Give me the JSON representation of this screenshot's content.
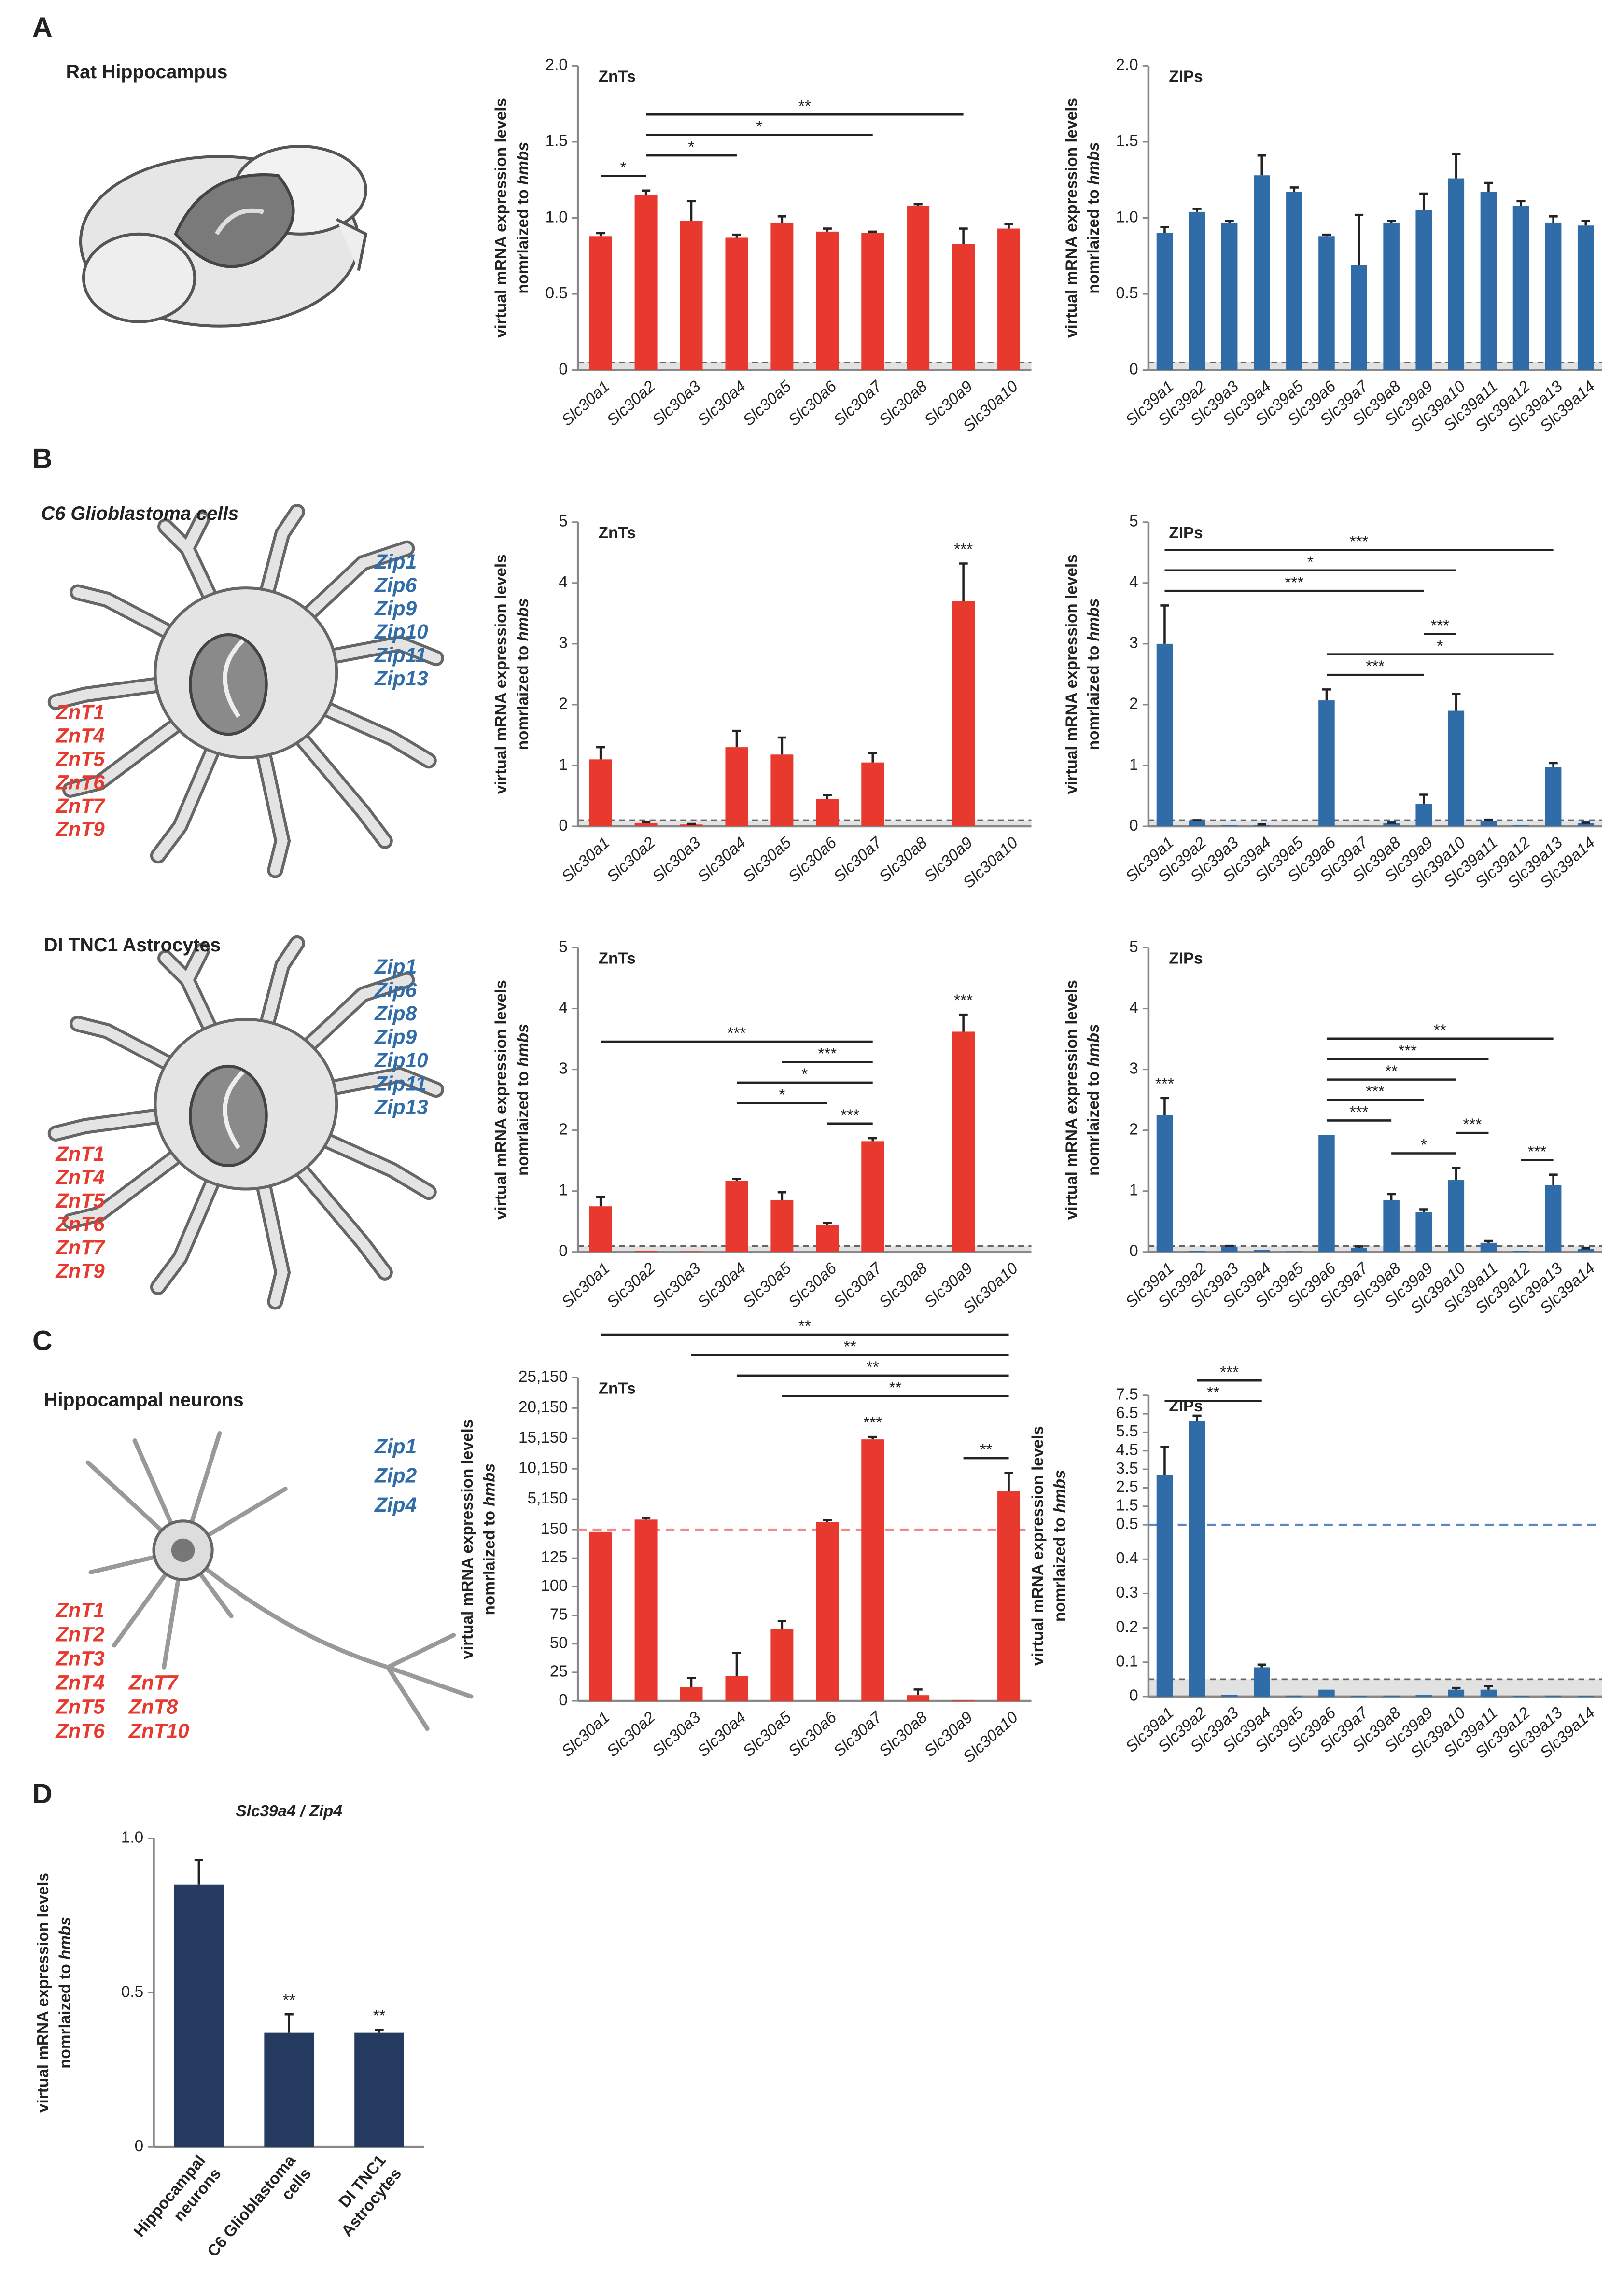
{
  "panels": {
    "A": {
      "label": "A",
      "caption": "Rat Hippocampus"
    },
    "B": {
      "label": "B",
      "caption": "C6 Glioblastoma cells",
      "blue": [
        "Zip1",
        "Zip6",
        "Zip9",
        "Zip10",
        "Zip11",
        "Zip13"
      ],
      "red": [
        "ZnT1",
        "ZnT4",
        "ZnT5",
        "ZnT6",
        "ZnT7",
        "ZnT9"
      ],
      "caption2": "DI TNC1 Astrocytes",
      "blue2": [
        "Zip1",
        "Zip6",
        "Zip8",
        "Zip9",
        "Zip10",
        "Zip11",
        "Zip13"
      ],
      "red2": [
        "ZnT1",
        "ZnT4",
        "ZnT5",
        "ZnT6",
        "ZnT7",
        "ZnT9"
      ]
    },
    "C": {
      "label": "C",
      "caption": "Hippocampal neurons",
      "blue": [
        "Zip1",
        "Zip2",
        "Zip4"
      ],
      "red": [
        "ZnT1",
        "ZnT2",
        "ZnT3",
        "ZnT4",
        "ZnT5",
        "ZnT6",
        "ZnT7",
        "ZnT8",
        "ZnT10"
      ]
    },
    "D": {
      "label": "D"
    }
  },
  "chart_data": [
    {
      "type": "bar",
      "title": "ZnTs",
      "ylabel": {
        "line1": "virtual mRNA expression levels",
        "line2": "nomrlaized to",
        "italic": "hmbs"
      },
      "categories": [
        "Slc30a1",
        "Slc30a2",
        "Slc30a3",
        "Slc30a4",
        "Slc30a5",
        "Slc30a6",
        "Slc30a7",
        "Slc30a8",
        "Slc30a9",
        "Slc30a10"
      ],
      "values": [
        0.88,
        1.15,
        0.98,
        0.87,
        0.97,
        0.91,
        0.9,
        1.08,
        0.83,
        0.93
      ],
      "errors": [
        0.02,
        0.03,
        0.13,
        0.02,
        0.04,
        0.02,
        0.01,
        0.01,
        0.1,
        0.03
      ],
      "color": "#e8392e",
      "ylim": [
        0,
        2
      ],
      "yticks": [
        0,
        0.5,
        {
          "value": 1,
          "label": "1.0"
        },
        1.5,
        {
          "value": 2,
          "label": "2.0"
        }
      ],
      "threshold": 0.05,
      "significance": [
        {
          "between": [
            "Slc30a1",
            "Slc30a2"
          ],
          "label": "*"
        },
        {
          "between": [
            "Slc30a2",
            "Slc30a4"
          ],
          "label": "*"
        },
        {
          "between": [
            "Slc30a2",
            "Slc30a7"
          ],
          "label": "*"
        },
        {
          "between": [
            "Slc30a2",
            "Slc30a9"
          ],
          "label": "**"
        }
      ]
    },
    {
      "type": "bar",
      "title": "ZIPs",
      "ylabel": {
        "line1": "virtual mRNA expression levels",
        "line2": "nomrlaized to",
        "italic": "hmbs"
      },
      "categories": [
        "Slc39a1",
        "Slc39a2",
        "Slc39a3",
        "Slc39a4",
        "Slc39a5",
        "Slc39a6",
        "Slc39a7",
        "Slc39a8",
        "Slc39a9",
        "Slc39a10",
        "Slc39a11",
        "Slc39a12",
        "Slc39a13",
        "Slc39a14"
      ],
      "values": [
        0.9,
        1.04,
        0.97,
        1.28,
        1.17,
        0.88,
        0.69,
        0.97,
        1.05,
        1.26,
        1.17,
        1.08,
        0.97,
        0.95
      ],
      "errors": [
        0.04,
        0.02,
        0.01,
        0.13,
        0.03,
        0.01,
        0.33,
        0.01,
        0.11,
        0.16,
        0.06,
        0.03,
        0.04,
        0.03
      ],
      "color": "#2f6ca8",
      "ylim": [
        0,
        2
      ],
      "yticks": [
        0,
        0.5,
        {
          "value": 1,
          "label": "1.0"
        },
        1.5,
        {
          "value": 2,
          "label": "2.0"
        }
      ],
      "threshold": 0.05
    },
    {
      "type": "bar",
      "title": "ZnTs",
      "ylabel": {
        "line1": "virtual mRNA expression levels",
        "line2": "nomrlaized to",
        "italic": "hmbs"
      },
      "categories": [
        "Slc30a1",
        "Slc30a2",
        "Slc30a3",
        "Slc30a4",
        "Slc30a5",
        "Slc30a6",
        "Slc30a7",
        "Slc30a8",
        "Slc30a9",
        "Slc30a10"
      ],
      "values": [
        1.1,
        0.05,
        0.03,
        1.3,
        1.18,
        0.45,
        1.05,
        0,
        3.7,
        0
      ],
      "errors": [
        0.2,
        0.02,
        0.01,
        0.27,
        0.28,
        0.06,
        0.15,
        0,
        0.62,
        0
      ],
      "color": "#e8392e",
      "ylim": [
        0,
        5
      ],
      "yticks": [
        0,
        1,
        2,
        3,
        4,
        5
      ],
      "threshold": 0.1,
      "annotations": [
        null,
        null,
        null,
        null,
        null,
        null,
        null,
        null,
        "***",
        null
      ]
    },
    {
      "type": "bar",
      "title": "ZIPs",
      "ylabel": {
        "line1": "virtual mRNA expression levels",
        "line2": "nomrlaized to",
        "italic": "hmbs"
      },
      "categories": [
        "Slc39a1",
        "Slc39a2",
        "Slc39a3",
        "Slc39a4",
        "Slc39a5",
        "Slc39a6",
        "Slc39a7",
        "Slc39a8",
        "Slc39a9",
        "Slc39a10",
        "Slc39a11",
        "Slc39a12",
        "Slc39a13",
        "Slc39a14"
      ],
      "values": [
        3.0,
        0.08,
        0.02,
        0.02,
        0.01,
        2.07,
        0.01,
        0.05,
        0.37,
        1.9,
        0.08,
        0.02,
        0.97,
        0.05
      ],
      "errors": [
        0.63,
        0.02,
        0,
        0.01,
        0,
        0.18,
        0,
        0.01,
        0.15,
        0.28,
        0.03,
        0,
        0.07,
        0.01
      ],
      "color": "#2f6ca8",
      "ylim": [
        0,
        5
      ],
      "yticks": [
        0,
        1,
        2,
        3,
        4,
        5
      ],
      "threshold": 0.1,
      "significance": [
        {
          "between": [
            "Slc39a6",
            "Slc39a9"
          ],
          "label": "***"
        },
        {
          "between": [
            "Slc39a6",
            "Slc39a13"
          ],
          "label": "*"
        },
        {
          "between": [
            "Slc39a9",
            "Slc39a10"
          ],
          "label": "***"
        },
        {
          "between": [
            "Slc39a1",
            "Slc39a9"
          ],
          "label": "***"
        },
        {
          "between": [
            "Slc39a1",
            "Slc39a10"
          ],
          "label": "*"
        },
        {
          "between": [
            "Slc39a1",
            "Slc39a13"
          ],
          "label": "***"
        }
      ]
    },
    {
      "type": "bar",
      "title": "ZnTs",
      "ylabel": {
        "line1": "virtual mRNA expression levels",
        "line2": "nomrlaized to",
        "italic": "hmbs"
      },
      "categories": [
        "Slc30a1",
        "Slc30a2",
        "Slc30a3",
        "Slc30a4",
        "Slc30a5",
        "Slc30a6",
        "Slc30a7",
        "Slc30a8",
        "Slc30a9",
        "Slc30a10"
      ],
      "values": [
        0.75,
        0.02,
        0.01,
        1.17,
        0.85,
        0.45,
        1.82,
        0,
        3.62,
        0
      ],
      "errors": [
        0.15,
        0,
        0,
        0.03,
        0.13,
        0.03,
        0.05,
        0,
        0.28,
        0
      ],
      "color": "#e8392e",
      "ylim": [
        0,
        5
      ],
      "yticks": [
        0,
        1,
        2,
        3,
        4,
        5
      ],
      "threshold": 0.1,
      "annotations": [
        null,
        null,
        null,
        null,
        null,
        null,
        null,
        null,
        "***",
        null
      ],
      "significance": [
        {
          "between": [
            "Slc30a6",
            "Slc30a7"
          ],
          "label": "***"
        },
        {
          "between": [
            "Slc30a4",
            "Slc30a6"
          ],
          "label": "*"
        },
        {
          "between": [
            "Slc30a4",
            "Slc30a7"
          ],
          "label": "*"
        },
        {
          "between": [
            "Slc30a5",
            "Slc30a7"
          ],
          "label": "***"
        },
        {
          "between": [
            "Slc30a1",
            "Slc30a7"
          ],
          "label": "***"
        }
      ]
    },
    {
      "type": "bar",
      "title": "ZIPs",
      "ylabel": {
        "line1": "virtual mRNA expression levels",
        "line2": "nomrlaized to",
        "italic": "hmbs"
      },
      "categories": [
        "Slc39a1",
        "Slc39a2",
        "Slc39a3",
        "Slc39a4",
        "Slc39a5",
        "Slc39a6",
        "Slc39a7",
        "Slc39a8",
        "Slc39a9",
        "Slc39a10",
        "Slc39a11",
        "Slc39a12",
        "Slc39a13",
        "Slc39a14"
      ],
      "values": [
        2.25,
        0.02,
        0.08,
        0.03,
        0.01,
        1.92,
        0.07,
        0.85,
        0.65,
        1.18,
        0.15,
        0.02,
        1.1,
        0.05
      ],
      "errors": [
        0.28,
        0,
        0.02,
        0,
        0,
        0,
        0.02,
        0.1,
        0.05,
        0.2,
        0.03,
        0,
        0.17,
        0.01
      ],
      "color": "#2f6ca8",
      "ylim": [
        0,
        5
      ],
      "yticks": [
        0,
        1,
        2,
        3,
        4,
        5
      ],
      "threshold": 0.1,
      "annotations": [
        "***",
        null,
        null,
        null,
        null,
        null,
        null,
        null,
        null,
        null,
        null,
        null,
        null,
        null
      ],
      "significance": [
        {
          "between": [
            "Slc39a8",
            "Slc39a10"
          ],
          "label": "*"
        },
        {
          "between": [
            "Slc39a10",
            "Slc39a11"
          ],
          "label": "***"
        },
        {
          "between": [
            "Slc39a12",
            "Slc39a13"
          ],
          "label": "***"
        },
        {
          "between": [
            "Slc39a6",
            "Slc39a8"
          ],
          "label": "***"
        },
        {
          "between": [
            "Slc39a6",
            "Slc39a9"
          ],
          "label": "***"
        },
        {
          "between": [
            "Slc39a6",
            "Slc39a10"
          ],
          "label": "**"
        },
        {
          "between": [
            "Slc39a6",
            "Slc39a11"
          ],
          "label": "***"
        },
        {
          "between": [
            "Slc39a6",
            "Slc39a13"
          ],
          "label": "**"
        }
      ]
    },
    {
      "type": "bar",
      "title": "ZnTs",
      "ylabel": {
        "line1": "virtual mRNA expression levels",
        "line2": "nomrlaized to",
        "italic": "hmbs"
      },
      "categories": [
        "Slc30a1",
        "Slc30a2",
        "Slc30a3",
        "Slc30a4",
        "Slc30a5",
        "Slc30a6",
        "Slc30a7",
        "Slc30a8",
        "Slc30a9",
        "Slc30a10"
      ],
      "values": [
        148,
        1800,
        12,
        22,
        63,
        1400,
        15000,
        5,
        0.5,
        6500
      ],
      "errors": [
        0,
        300,
        8,
        20,
        7,
        300,
        400,
        5,
        0,
        3000
      ],
      "color": "#e8392e",
      "ylim": [
        0,
        25150
      ],
      "ybreak": 150,
      "yticks": [
        0,
        25,
        50,
        75,
        100,
        125,
        150,
        {
          "value": 5150,
          "label": "5,150"
        },
        {
          "value": 10150,
          "label": "10,150"
        },
        {
          "value": 15150,
          "label": "15,150"
        },
        {
          "value": 20150,
          "label": "20,150"
        },
        {
          "value": 25150,
          "label": "25,150"
        }
      ],
      "reference_line": {
        "value": 150,
        "color": "#f08a8a"
      },
      "annotations": [
        null,
        null,
        null,
        null,
        null,
        null,
        "***",
        null,
        null,
        null
      ],
      "significance": [
        {
          "between": [
            "Slc30a9",
            "Slc30a10"
          ],
          "label": "**"
        },
        {
          "between": [
            "Slc30a5",
            "Slc30a10"
          ],
          "label": "**"
        },
        {
          "between": [
            "Slc30a4",
            "Slc30a10"
          ],
          "label": "**"
        },
        {
          "between": [
            "Slc30a3",
            "Slc30a10"
          ],
          "label": "**"
        },
        {
          "between": [
            "Slc30a1",
            "Slc30a10"
          ],
          "label": "**"
        }
      ]
    },
    {
      "type": "bar",
      "title": "ZIPs",
      "ylabel": {
        "line1": "virtual mRNA expression levels",
        "line2": "nomrlaized to",
        "italic": "hmbs"
      },
      "categories": [
        "Slc39a1",
        "Slc39a2",
        "Slc39a3",
        "Slc39a4",
        "Slc39a5",
        "Slc39a6",
        "Slc39a7",
        "Slc39a8",
        "Slc39a9",
        "Slc39a10",
        "Slc39a11",
        "Slc39a12",
        "Slc39a13",
        "Slc39a14"
      ],
      "values": [
        3.2,
        6.1,
        0.005,
        0.085,
        0.003,
        0.02,
        0.002,
        0.003,
        0.004,
        0.02,
        0.02,
        0.002,
        0.003,
        0.002
      ],
      "errors": [
        1.5,
        0.3,
        0,
        0.008,
        0,
        0,
        0,
        0,
        0,
        0.005,
        0.01,
        0,
        0,
        0
      ],
      "color": "#2f6ca8",
      "ylim": [
        0,
        7.5
      ],
      "ybreak": 0.5,
      "yticks": [
        0,
        0.1,
        0.2,
        0.3,
        0.4,
        0.5,
        1.5,
        2.5,
        3.5,
        4.5,
        5.5,
        6.5,
        7.5
      ],
      "threshold": 0.05,
      "reference_line": {
        "value": 0.5,
        "color": "#5b86c6"
      },
      "significance": [
        {
          "between": [
            "Slc39a1",
            "Slc39a4"
          ],
          "label": "**"
        },
        {
          "between": [
            "Slc39a2",
            "Slc39a4"
          ],
          "label": "***"
        }
      ]
    },
    {
      "type": "bar",
      "title": "Slc39a4 / Zip4",
      "ylabel": {
        "line1": "virtual mRNA expression levels",
        "line2": "nomrlaized to",
        "italic": "hmbs"
      },
      "categories": [
        [
          "Hippocampal",
          "neurons"
        ],
        [
          "C6 Glioblastoma",
          "cells"
        ],
        [
          "DI TNC1",
          "Astrocytes"
        ]
      ],
      "values": [
        0.85,
        0.37,
        0.37
      ],
      "errors": [
        0.08,
        0.06,
        0.01
      ],
      "color": "#243a5e",
      "ylim": [
        0,
        1
      ],
      "yticks": [
        0,
        0.5,
        {
          "value": 1,
          "label": "1.0"
        }
      ],
      "annotations": [
        null,
        "**",
        "**"
      ]
    }
  ]
}
